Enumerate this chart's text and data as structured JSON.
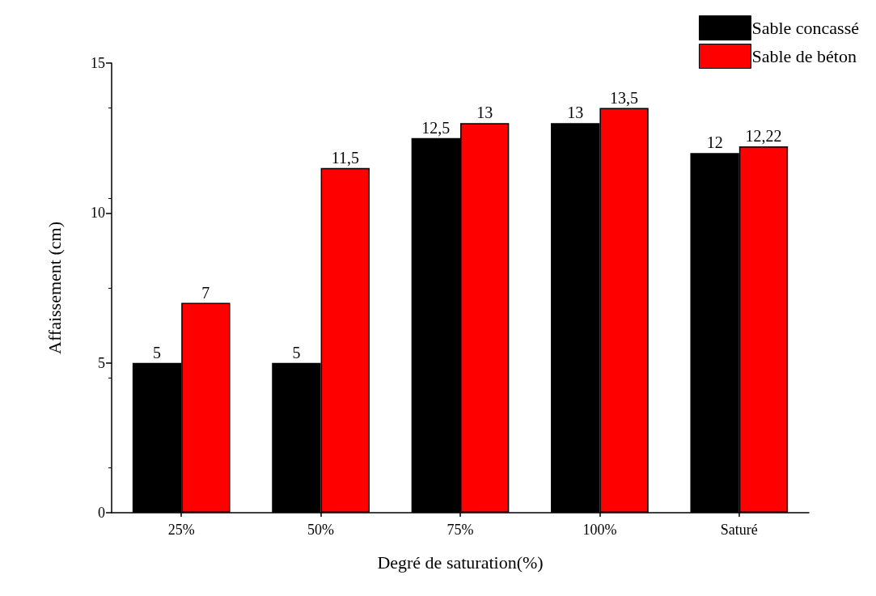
{
  "chart_data": {
    "type": "bar",
    "xlabel": "Degré de saturation(%)",
    "ylabel": "Affaissement (cm)",
    "categories": [
      "25%",
      "50%",
      "75%",
      "100%",
      "Saturé"
    ],
    "series": [
      {
        "name": "Sable concassé",
        "color": "#000000",
        "values": [
          5,
          5,
          12.5,
          13,
          12
        ],
        "value_labels": [
          "5",
          "5",
          "12,5",
          "13",
          "12"
        ]
      },
      {
        "name": "Sable de béton",
        "color": "#ff0000",
        "values": [
          7,
          11.5,
          13,
          13.5,
          12.22
        ],
        "value_labels": [
          "7",
          "11,5",
          "13",
          "13,5",
          "12,22"
        ]
      }
    ],
    "ylim": [
      0,
      15
    ],
    "yticks": [
      0,
      5,
      10,
      15
    ],
    "grid": false,
    "legend": "top right"
  }
}
